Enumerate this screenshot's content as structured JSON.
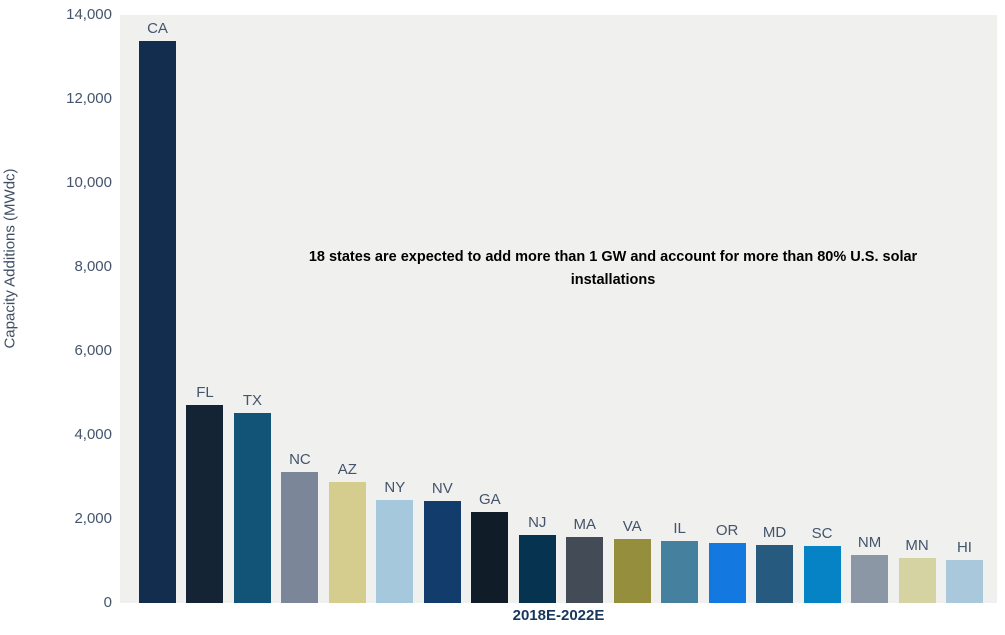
{
  "chart_data": {
    "type": "bar",
    "title": "",
    "categories": [
      "CA",
      "FL",
      "TX",
      "NC",
      "AZ",
      "NY",
      "NV",
      "GA",
      "NJ",
      "MA",
      "VA",
      "IL",
      "OR",
      "MD",
      "SC",
      "NM",
      "MN",
      "HI"
    ],
    "values": [
      13380,
      4710,
      4520,
      3120,
      2880,
      2450,
      2430,
      2170,
      1620,
      1570,
      1520,
      1480,
      1430,
      1380,
      1360,
      1140,
      1070,
      1020
    ],
    "bar_colors": [
      "#132d4e",
      "#152434",
      "#115478",
      "#7b8698",
      "#d4cd8d",
      "#a5c8dd",
      "#123c6b",
      "#101c28",
      "#053350",
      "#424b56",
      "#948e3d",
      "#45809f",
      "#1478e1",
      "#265a7f",
      "#0583c5",
      "#8c97a6",
      "#d6d3a3",
      "#a9c8dc"
    ],
    "xlabel": "2018E-2022E",
    "ylabel": "Capacity Additions (MWdc)",
    "ylim": [
      0,
      14000
    ],
    "yticks": [
      0,
      2000,
      4000,
      6000,
      8000,
      10000,
      12000,
      14000
    ],
    "ytick_labels": [
      "0",
      "2,000",
      "4,000",
      "6,000",
      "8,000",
      "10,000",
      "12,000",
      "14,000"
    ],
    "grid": false,
    "legend": "none",
    "annotation": "18 states are expected to add more than 1 GW and account for more than 80% U.S. solar installations",
    "plot_background": "#f0f0ef",
    "tick_label_color": "#44546a",
    "annotation_color": "#000000"
  }
}
